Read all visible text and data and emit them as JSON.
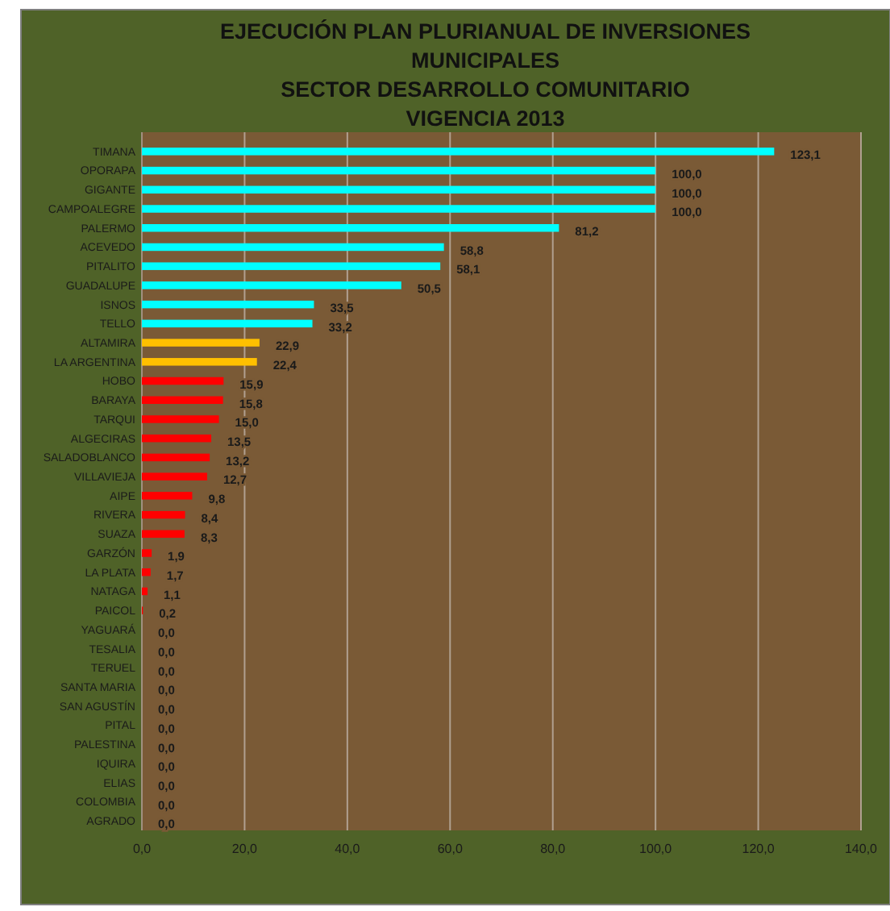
{
  "chart_data": {
    "type": "bar",
    "orientation": "horizontal",
    "title": "EJECUCIÓN PLAN PLURIANUAL DE INVERSIONES\nMUNICIPALES",
    "subtitle": "SECTOR DESARROLLO COMUNITARIO\nVIGENCIA 2013",
    "categories": [
      "TIMANA",
      "OPORAPA",
      "GIGANTE",
      "CAMPOALEGRE",
      "PALERMO",
      "ACEVEDO",
      "PITALITO",
      "GUADALUPE",
      "ISNOS",
      "TELLO",
      "ALTAMIRA",
      "LA ARGENTINA",
      "HOBO",
      "BARAYA",
      "TARQUI",
      "ALGECIRAS",
      "SALADOBLANCO",
      "VILLAVIEJA",
      "AIPE",
      "RIVERA",
      "SUAZA",
      "GARZÓN",
      "LA PLATA",
      "NATAGA",
      "PAICOL",
      "YAGUARÁ",
      "TESALIA",
      "TERUEL",
      "SANTA MARIA",
      "SAN AGUSTÍN",
      "PITAL",
      "PALESTINA",
      "IQUIRA",
      "ELIAS",
      "COLOMBIA",
      "AGRADO"
    ],
    "values": [
      123.1,
      100.0,
      100.0,
      100.0,
      81.2,
      58.8,
      58.1,
      50.5,
      33.5,
      33.2,
      22.9,
      22.4,
      15.9,
      15.8,
      15.0,
      13.5,
      13.2,
      12.7,
      9.8,
      8.4,
      8.3,
      1.9,
      1.7,
      1.1,
      0.2,
      0,
      0,
      0,
      0,
      0,
      0,
      0,
      0,
      0,
      0,
      0
    ],
    "value_labels": [
      "123,1",
      "100,0",
      "100,0",
      "100,0",
      "81,2",
      "58,8",
      "58,1",
      "50,5",
      "33,5",
      "33,2",
      "22,9",
      "22,4",
      "15,9",
      "15,8",
      "15,0",
      "13,5",
      "13,2",
      "12,7",
      "9,8",
      "8,4",
      "8,3",
      "1,9",
      "1,7",
      "1,1",
      "0,2",
      "0,0",
      "0,0",
      "0,0",
      "0,0",
      "0,0",
      "0,0",
      "0,0",
      "0,0",
      "0,0",
      "0,0",
      "0,0"
    ],
    "colors": [
      "#00ffff",
      "#00ffff",
      "#00ffff",
      "#00ffff",
      "#00ffff",
      "#00ffff",
      "#00ffff",
      "#00ffff",
      "#00ffff",
      "#00ffff",
      "#ffc000",
      "#ffc000",
      "#ff0000",
      "#ff0000",
      "#ff0000",
      "#ff0000",
      "#ff0000",
      "#ff0000",
      "#ff0000",
      "#ff0000",
      "#ff0000",
      "#ff0000",
      "#ff0000",
      "#ff0000",
      "#ff0000",
      "#ff0000",
      "#ff0000",
      "#ff0000",
      "#ff0000",
      "#ff0000",
      "#ff0000",
      "#ff0000",
      "#ff0000",
      "#ff0000",
      "#ff0000",
      "#ff0000"
    ],
    "xlim": [
      0,
      140
    ],
    "xticks": [
      {
        "value": 0,
        "label": "0,0"
      },
      {
        "value": 20,
        "label": "20,0"
      },
      {
        "value": 40,
        "label": "40,0"
      },
      {
        "value": 60,
        "label": "60,0"
      },
      {
        "value": 80,
        "label": "80,0"
      },
      {
        "value": 100,
        "label": "100,0"
      },
      {
        "value": 120,
        "label": "120,0"
      },
      {
        "value": 140,
        "label": "140,0"
      }
    ],
    "grid": "x"
  }
}
